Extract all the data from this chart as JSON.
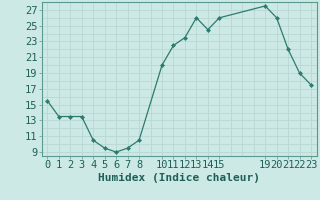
{
  "x": [
    0,
    1,
    2,
    3,
    4,
    5,
    6,
    7,
    8,
    10,
    11,
    12,
    13,
    14,
    15,
    19,
    20,
    21,
    22,
    23
  ],
  "y": [
    15.5,
    13.5,
    13.5,
    13.5,
    10.5,
    9.5,
    9.0,
    9.5,
    10.5,
    20.0,
    22.5,
    23.5,
    26.0,
    24.5,
    26.0,
    27.5,
    26.0,
    22.0,
    19.0,
    17.5
  ],
  "xlabel": "Humidex (Indice chaleur)",
  "xlim": [
    -0.5,
    23.5
  ],
  "ylim": [
    8.5,
    28.0
  ],
  "xticks": [
    0,
    1,
    2,
    3,
    4,
    5,
    6,
    7,
    8,
    10,
    11,
    12,
    13,
    14,
    15,
    19,
    20,
    21,
    22,
    23
  ],
  "yticks": [
    9,
    11,
    13,
    15,
    17,
    19,
    21,
    23,
    25,
    27
  ],
  "grid_xticks": [
    0,
    1,
    2,
    3,
    4,
    5,
    6,
    7,
    8,
    9,
    10,
    11,
    12,
    13,
    14,
    15,
    16,
    17,
    18,
    19,
    20,
    21,
    22,
    23
  ],
  "line_color": "#2d7b6f",
  "marker_color": "#2d7b6f",
  "bg_color": "#cce9e5",
  "grid_color": "#b8d8d4",
  "spine_color": "#5a9a90",
  "label_color": "#1e5f58",
  "tick_label_color": "#1e5f58",
  "font_size": 7.5,
  "xlabel_fontsize": 8.0
}
